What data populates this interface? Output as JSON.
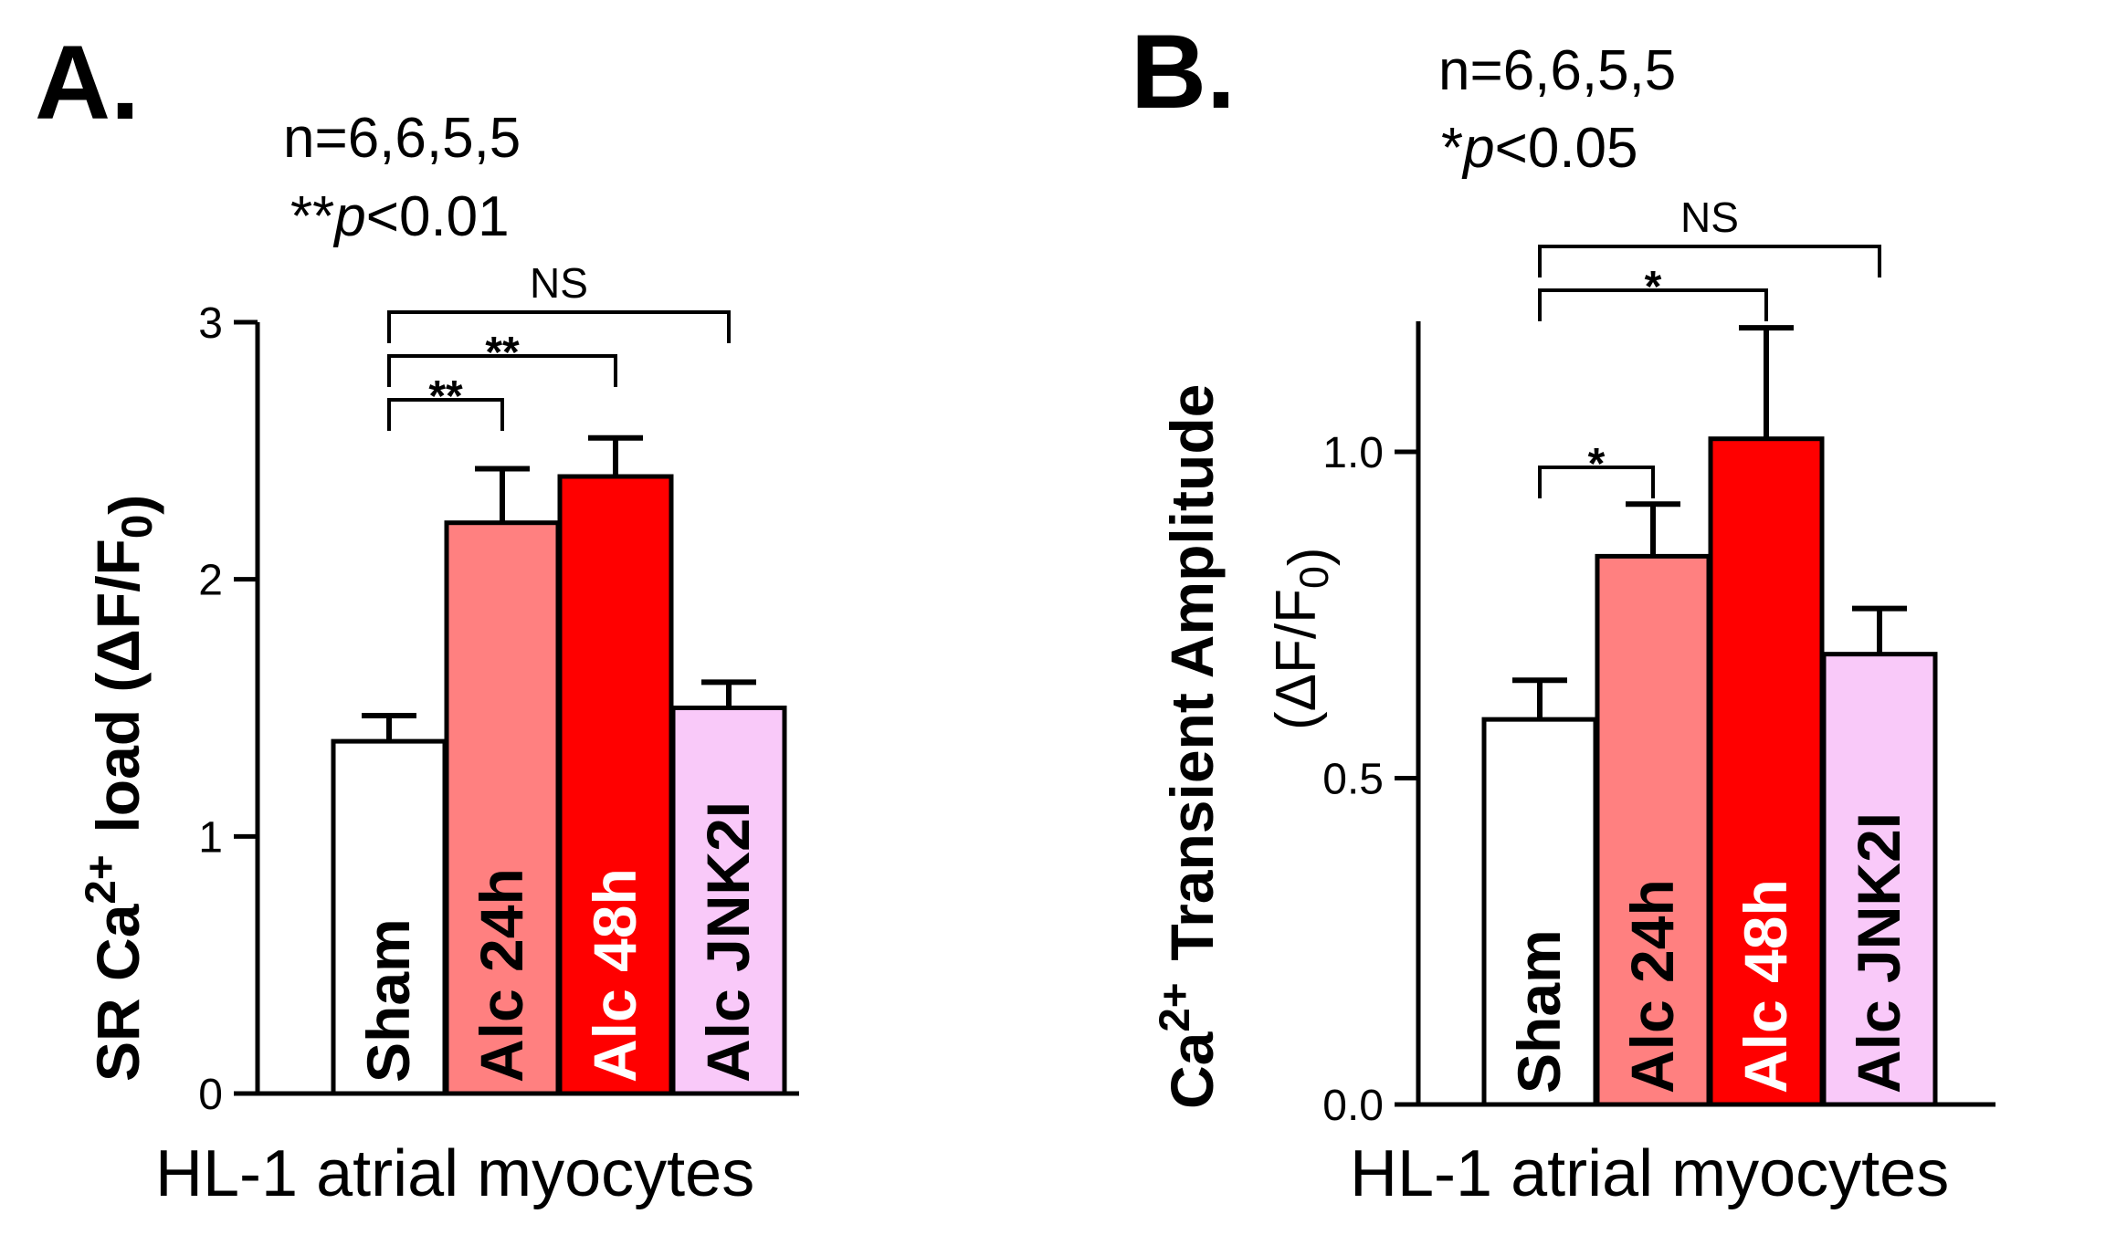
{
  "chart_data": [
    {
      "type": "bar",
      "panel_label": "A.",
      "annotation_n": "n=6,6,5,5",
      "annotation_p": "**p<0.01",
      "xlabel": "HL-1 atrial myocytes",
      "ylabel": "SR Ca2+ load (ΔF/F0)",
      "ylim": [
        0,
        3
      ],
      "yticks": [
        "0",
        "1",
        "2",
        "3"
      ],
      "categories": [
        "Sham",
        "Alc 24h",
        "Alc 48h",
        "Alc JNK2I"
      ],
      "values": [
        1.37,
        2.22,
        2.4,
        1.5
      ],
      "errors": [
        0.1,
        0.21,
        0.15,
        0.1
      ],
      "colors": [
        "#ffffff",
        "#ff8080",
        "#ff0000",
        "#f9c9f9"
      ],
      "label_colors": [
        "#000000",
        "#000000",
        "#ffffff",
        "#000000"
      ],
      "comparisons": [
        {
          "from": 0,
          "to": 1,
          "label": "**"
        },
        {
          "from": 0,
          "to": 2,
          "label": "**"
        },
        {
          "from": 0,
          "to": 3,
          "label": "NS"
        }
      ]
    },
    {
      "type": "bar",
      "panel_label": "B.",
      "annotation_n": "n=6,6,5,5",
      "annotation_p": "*p<0.05",
      "xlabel": "HL-1 atrial myocytes",
      "ylabel": "Ca2+ Transient Amplitude (ΔF/F0)",
      "ylim": [
        0,
        1.2
      ],
      "yticks": [
        "0.0",
        "0.5",
        "1.0"
      ],
      "categories": [
        "Sham",
        "Alc 24h",
        "Alc 48h",
        "Alc JNK2I"
      ],
      "values": [
        0.59,
        0.84,
        1.02,
        0.69
      ],
      "errors": [
        0.06,
        0.08,
        0.17,
        0.07
      ],
      "colors": [
        "#ffffff",
        "#ff8080",
        "#ff0000",
        "#f9c9f9"
      ],
      "label_colors": [
        "#000000",
        "#000000",
        "#ffffff",
        "#000000"
      ],
      "comparisons": [
        {
          "from": 0,
          "to": 1,
          "label": "*"
        },
        {
          "from": 0,
          "to": 2,
          "label": "*"
        },
        {
          "from": 0,
          "to": 3,
          "label": "NS"
        }
      ]
    }
  ]
}
